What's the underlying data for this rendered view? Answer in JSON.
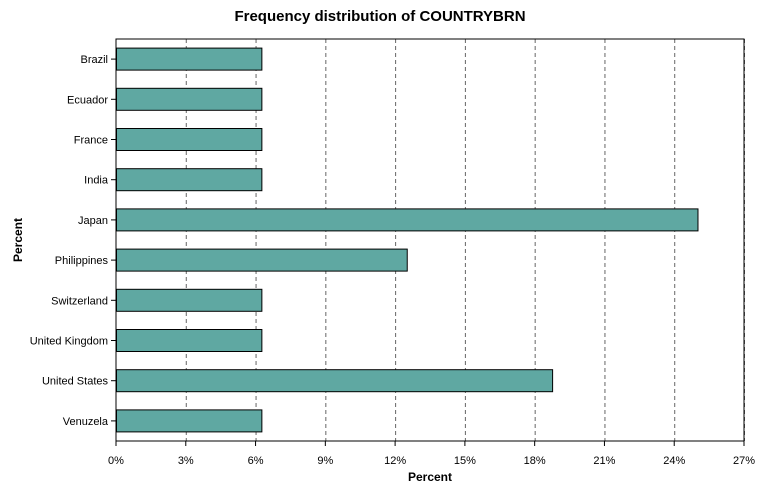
{
  "chart_data": {
    "type": "bar",
    "orientation": "horizontal",
    "title": "Frequency distribution of COUNTRYBRN",
    "xlabel": "Percent",
    "ylabel": "Percent",
    "categories": [
      "Brazil",
      "Ecuador",
      "France",
      "India",
      "Japan",
      "Philippines",
      "Switzerland",
      "United Kingdom",
      "United States",
      "Venuzela"
    ],
    "values": [
      6.25,
      6.25,
      6.25,
      6.25,
      25.0,
      12.5,
      6.25,
      6.25,
      18.75,
      6.25
    ],
    "xlim": [
      0,
      27
    ],
    "x_ticks": [
      0,
      3,
      6,
      9,
      12,
      15,
      18,
      21,
      24,
      27
    ],
    "x_tick_labels": [
      "0%",
      "3%",
      "6%",
      "9%",
      "12%",
      "15%",
      "18%",
      "21%",
      "24%",
      "27%"
    ],
    "grid": "vertical dashed",
    "bar_color": "#5fa8a2",
    "bar_edge_color": "#000000"
  }
}
